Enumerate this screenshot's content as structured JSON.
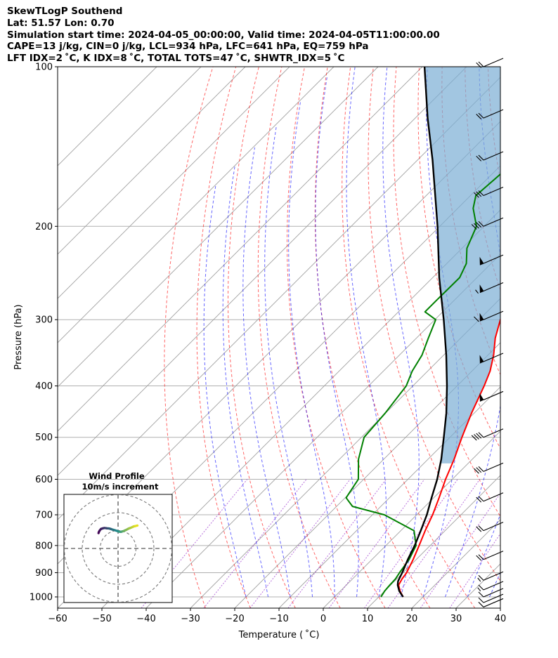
{
  "header": {
    "line1": "SkewTLogP Southend",
    "line2": "Lat: 51.57   Lon: 0.70",
    "line3": "Simulation start time: 2024-04-05_00:00:00, Valid time: 2024-04-05T11:00:00.00",
    "line4": "CAPE=13 j/kg, CIN=0 j/kg, LCL=934 hPa, LFC=641 hPa, EQ=759 hPa",
    "line5": "LFT IDX=2 ˚C, K IDX=8 ˚C, TOTAL TOTS=47 ˚C, SHWTR_IDX=5 ˚C"
  },
  "chart_data": {
    "type": "line",
    "subtype": "skewt-logp",
    "xlabel": "Temperature ( ˚C)",
    "ylabel": "Pressure (hPa)",
    "xlim": [
      -60,
      40
    ],
    "ylim": [
      1050,
      100
    ],
    "x_ticks": [
      -60,
      -50,
      -40,
      -30,
      -20,
      -10,
      0,
      10,
      20,
      30,
      40
    ],
    "x_tick_labels": [
      "−60",
      "−50",
      "−40",
      "−30",
      "−20",
      "−10",
      "0",
      "10",
      "20",
      "30",
      "40"
    ],
    "y_ticks": [
      1000,
      900,
      800,
      700,
      600,
      500,
      400,
      300,
      200,
      100
    ],
    "y_tick_labels": [
      "1000",
      "900",
      "800",
      "700",
      "600",
      "500",
      "400",
      "300",
      "200",
      "100"
    ],
    "y_scale": "log",
    "grid": true,
    "colors": {
      "temperature": "#ff0000",
      "dewpoint": "#008000",
      "parcel": "#000000",
      "cape_fill": "#7aaed4",
      "dry_adiabat": "#ff0000",
      "moist_adiabat": "#0000ff",
      "mixing_ratio": "#9a32cd",
      "isotherm": "#999999"
    },
    "series": [
      {
        "key": "temperature",
        "pressure": [
          1000,
          975,
          950,
          925,
          900,
          850,
          800,
          750,
          700,
          650,
          600,
          550,
          500,
          450,
          400,
          375,
          350,
          325,
          300,
          275,
          250,
          235,
          225,
          200,
          175,
          150,
          140,
          125,
          110,
          100
        ],
        "temperature": [
          15.5,
          13.5,
          11.8,
          11.2,
          10.8,
          9.3,
          7.5,
          5.5,
          3.6,
          1.2,
          -1.5,
          -4.1,
          -7.3,
          -10.6,
          -13.9,
          -15.9,
          -18.7,
          -22.2,
          -25.2,
          -27.8,
          -29.9,
          -29.2,
          -27.2,
          -24.3,
          -20.5,
          -15.0,
          -12.1,
          -10.0,
          -7.4,
          -5.9
        ]
      },
      {
        "key": "dewpoint",
        "pressure": [
          1000,
          975,
          950,
          925,
          900,
          850,
          800,
          750,
          700,
          675,
          650,
          600,
          550,
          500,
          450,
          400,
          375,
          350,
          325,
          300,
          290,
          275,
          250,
          235,
          220,
          200,
          185,
          175,
          150,
          125,
          100
        ],
        "temperature": [
          10.5,
          10.0,
          9.8,
          9.7,
          9.2,
          8.4,
          6.8,
          3.0,
          -7.3,
          -16.4,
          -19.8,
          -21.2,
          -25.7,
          -29.4,
          -30.1,
          -31.5,
          -33.5,
          -34.9,
          -37.3,
          -39.8,
          -44.0,
          -44.0,
          -43.9,
          -45.6,
          -48.9,
          -51.7,
          -56.5,
          -58.8,
          -57.6,
          -53.0,
          -47.7
        ]
      },
      {
        "key": "parcel",
        "pressure": [
          1000,
          975,
          950,
          934,
          900,
          850,
          800,
          750,
          700,
          650,
          600,
          550,
          500,
          450,
          400,
          350,
          300,
          250,
          200,
          150,
          125,
          100
        ],
        "temperature": [
          15.5,
          13.3,
          11.6,
          10.8,
          9.8,
          8.1,
          6.5,
          4.5,
          2.3,
          -0.5,
          -3.4,
          -7.0,
          -11.4,
          -16.3,
          -22.3,
          -29.4,
          -38.0,
          -48.5,
          -60.5,
          -76.6,
          -87.2,
          -99.5
        ]
      }
    ],
    "cape_shaded_range_hpa": [
      100,
      560
    ],
    "wind_barbs": {
      "pressure": [
        100,
        125,
        150,
        175,
        200,
        235,
        265,
        300,
        360,
        425,
        500,
        580,
        660,
        750,
        850,
        930,
        970,
        1000,
        1025,
        1045
      ],
      "speed_kt": [
        20,
        20,
        20,
        30,
        40,
        50,
        55,
        60,
        50,
        50,
        40,
        30,
        20,
        20,
        20,
        15,
        15,
        10,
        10,
        10
      ],
      "direction_deg": [
        250,
        250,
        250,
        250,
        255,
        255,
        255,
        260,
        255,
        255,
        255,
        250,
        250,
        245,
        240,
        235,
        230,
        225,
        220,
        220
      ]
    },
    "hodograph": {
      "title": "Wind Profile",
      "subtitle": "10m/s increment",
      "u": [
        -10.9,
        -10.7,
        -10.2,
        -9.5,
        -8.6,
        -7.8,
        -7.2,
        -6.5,
        -5.9,
        -5.4,
        -4.8,
        -4.1,
        -3.3,
        -2.6,
        -1.8,
        -0.9,
        -0.1,
        0.5,
        1.2,
        1.8,
        2.3,
        2.8,
        3.3,
        3.9,
        4.6,
        5.3,
        6.1,
        6.7,
        7.4,
        8.1,
        8.7,
        9.3,
        10.0,
        10.8
      ],
      "v": [
        8.6,
        9.2,
        10.1,
        10.9,
        11.2,
        11.4,
        11.4,
        11.3,
        11.2,
        11.2,
        11.1,
        10.9,
        10.6,
        10.4,
        10.2,
        9.9,
        9.6,
        9.4,
        9.3,
        9.3,
        9.5,
        9.6,
        9.8,
        10.1,
        10.4,
        10.8,
        11.2,
        11.4,
        11.7,
        12.0,
        12.3,
        12.4,
        12.6,
        12.8
      ],
      "rings_ms": [
        10,
        20,
        30
      ]
    }
  }
}
